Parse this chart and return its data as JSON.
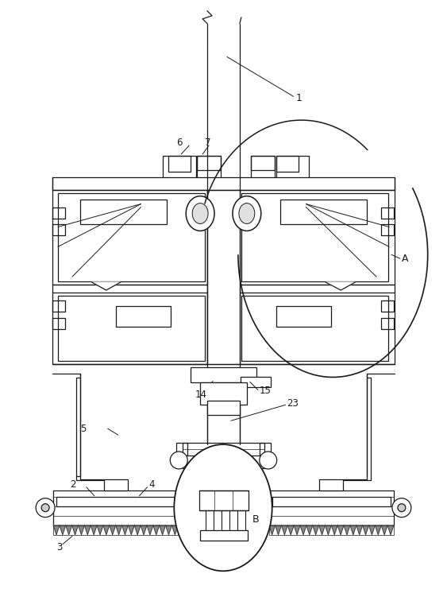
{
  "bg_color": "#ffffff",
  "line_color": "#1a1a1a",
  "label_color": "#1a1a1a",
  "fig_width": 5.63,
  "fig_height": 7.51,
  "dpi": 100
}
